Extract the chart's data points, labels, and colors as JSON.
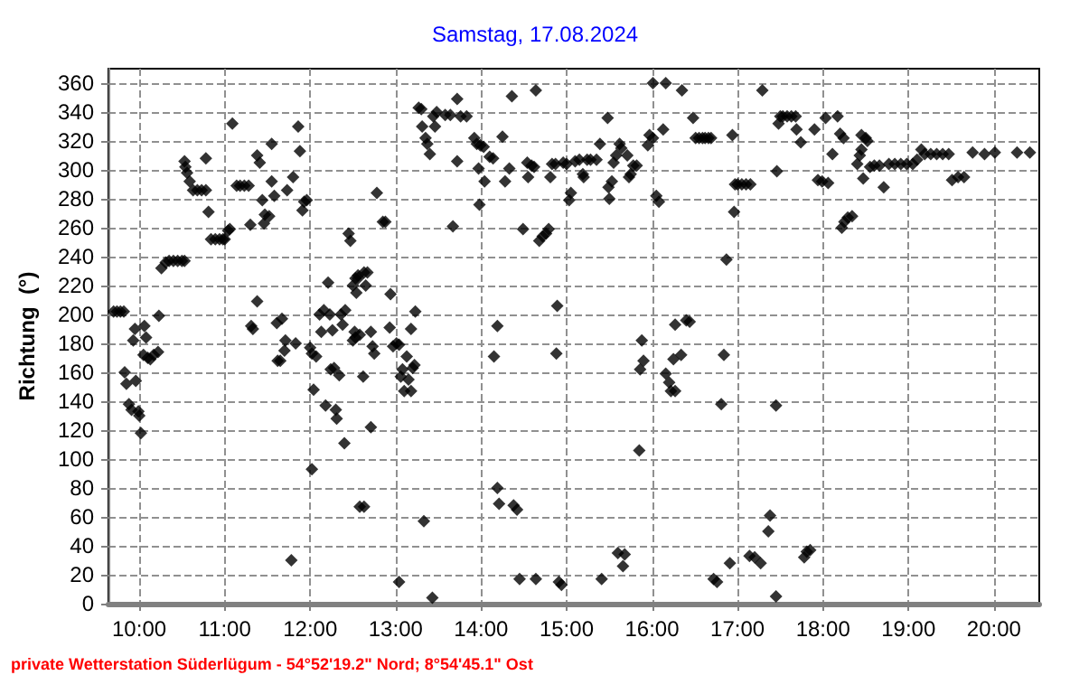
{
  "chart_data": {
    "type": "scatter",
    "title": "Samstag, 17.08.2024",
    "ylabel": "Richtung  (°)",
    "annotations": [
      "private Wetterstation Süderlügum - 54°52'19.2\" Nord; 8°54'45.1\" Ost"
    ],
    "x": [
      9.7,
      9.74,
      9.78,
      9.82,
      9.83,
      9.85,
      9.88,
      9.91,
      9.93,
      9.95,
      9.96,
      9.99,
      10.0,
      10.02,
      10.06,
      10.08,
      10.05,
      10.1,
      10.13,
      10.17,
      10.22,
      10.23,
      10.26,
      10.31,
      10.35,
      10.4,
      10.45,
      10.5,
      10.53,
      10.53,
      10.54,
      10.56,
      10.59,
      10.63,
      10.68,
      10.73,
      10.78,
      10.78,
      10.81,
      10.84,
      10.89,
      10.94,
      10.98,
      11.0,
      11.04,
      11.06,
      11.09,
      11.14,
      11.18,
      11.23,
      11.28,
      11.3,
      11.38,
      11.41,
      11.38,
      11.33,
      11.31,
      11.44,
      11.46,
      11.47,
      11.52,
      11.55,
      11.55,
      11.58,
      11.61,
      11.62,
      11.65,
      11.67,
      11.7,
      11.71,
      11.73,
      11.78,
      11.8,
      11.83,
      11.86,
      11.88,
      11.91,
      11.93,
      11.96,
      12.0,
      12.02,
      12.04,
      12.02,
      12.07,
      12.11,
      12.13,
      12.16,
      12.21,
      12.23,
      12.18,
      12.26,
      12.24,
      12.28,
      12.3,
      12.31,
      12.34,
      12.36,
      12.4,
      12.38,
      12.41,
      12.45,
      12.47,
      12.5,
      12.53,
      12.56,
      12.53,
      12.58,
      12.58,
      12.54,
      12.56,
      12.63,
      12.67,
      12.65,
      12.52,
      12.5,
      12.71,
      12.73,
      12.75,
      12.62,
      12.71,
      12.78,
      12.85,
      12.88,
      12.94,
      12.93,
      12.97,
      13.01,
      13.04,
      13.06,
      13.08,
      13.1,
      13.13,
      13.15,
      13.18,
      13.18,
      13.2,
      13.22,
      13.23,
      12.63,
      13.04,
      13.33,
      13.43,
      13.27,
      13.3,
      13.31,
      13.35,
      13.37,
      13.4,
      13.44,
      13.48,
      13.46,
      13.58,
      13.64,
      13.72,
      13.76,
      13.83,
      13.72,
      13.67,
      13.92,
      13.95,
      13.97,
      13.99,
      14.03,
      14.04,
      14.1,
      14.14,
      13.98,
      14.19,
      14.15,
      14.19,
      14.21,
      14.38,
      14.42,
      14.36,
      14.25,
      14.28,
      14.33,
      14.45,
      14.64,
      14.49,
      14.64,
      14.54,
      14.59,
      14.62,
      14.55,
      14.68,
      14.72,
      14.76,
      14.79,
      14.81,
      14.83,
      14.87,
      14.89,
      14.88,
      14.91,
      14.94,
      14.96,
      15.0,
      15.03,
      15.05,
      15.1,
      15.15,
      15.19,
      15.2,
      15.24,
      15.28,
      15.35,
      15.39,
      15.41,
      15.48,
      15.49,
      15.5,
      15.53,
      15.55,
      15.58,
      15.62,
      15.64,
      15.6,
      15.68,
      15.66,
      15.71,
      15.73,
      15.75,
      15.78,
      15.82,
      15.85,
      15.88,
      15.86,
      15.9,
      15.95,
      15.97,
      16.01,
      16.01,
      16.16,
      16.05,
      16.08,
      16.13,
      16.16,
      16.2,
      16.22,
      16.27,
      16.25,
      16.27,
      16.34,
      16.4,
      16.35,
      16.48,
      16.51,
      16.55,
      16.59,
      16.62,
      16.66,
      16.69,
      16.94,
      16.97,
      17.0,
      17.05,
      17.1,
      17.15,
      16.96,
      16.87,
      16.44,
      16.84,
      16.81,
      17.45,
      17.29,
      16.72,
      16.76,
      16.91,
      17.14,
      17.2,
      17.27,
      17.38,
      17.36,
      17.45,
      17.46,
      17.48,
      17.5,
      17.53,
      17.58,
      17.63,
      17.68,
      17.69,
      17.74,
      17.9,
      17.81,
      17.85,
      17.78,
      17.94,
      17.99,
      18.06,
      18.03,
      18.11,
      18.17,
      18.2,
      18.24,
      18.45,
      18.5,
      18.52,
      18.45,
      18.43,
      18.4,
      18.47,
      18.22,
      18.25,
      18.29,
      18.34,
      18.55,
      18.6,
      18.66,
      18.71,
      18.77,
      18.84,
      18.91,
      18.98,
      19.05,
      19.1,
      19.15,
      19.19,
      19.26,
      19.33,
      19.4,
      19.47,
      19.51,
      19.58,
      19.65,
      19.75,
      19.89,
      20.01,
      20.27,
      20.42
    ],
    "values": [
      202,
      202,
      202,
      202,
      160,
      152,
      138,
      134,
      182,
      190,
      154,
      133,
      130,
      118,
      192,
      184,
      172,
      170,
      169,
      172,
      174,
      199,
      232,
      236,
      237,
      237,
      237,
      237,
      237,
      306,
      302,
      298,
      292,
      286,
      286,
      286,
      286,
      308,
      271,
      252,
      252,
      252,
      252,
      252,
      258,
      259,
      332,
      289,
      289,
      289,
      289,
      262,
      310,
      305,
      209,
      190,
      192,
      279,
      263,
      269,
      268,
      292,
      318,
      282,
      194,
      168,
      168,
      197,
      175,
      182,
      286,
      30,
      295,
      180,
      330,
      313,
      272,
      278,
      279,
      177,
      173,
      148,
      93,
      171,
      200,
      188,
      203,
      222,
      200,
      137,
      189,
      162,
      163,
      134,
      128,
      158,
      200,
      111,
      193,
      203,
      256,
      251,
      220,
      225,
      227,
      184,
      186,
      67,
      215,
      225,
      229,
      229,
      220,
      188,
      182,
      188,
      178,
      173,
      157,
      122,
      284,
      264,
      264,
      214,
      191,
      178,
      180,
      179,
      157,
      162,
      147,
      171,
      155,
      190,
      147,
      163,
      165,
      202,
      67,
      15,
      57,
      4,
      343,
      342,
      330,
      322,
      318,
      311,
      337,
      340,
      330,
      338,
      338,
      349,
      337,
      337,
      306,
      261,
      322,
      318,
      301,
      317,
      316,
      292,
      309,
      308,
      276,
      192,
      171,
      80,
      69,
      68,
      65,
      351,
      323,
      292,
      301,
      17,
      17,
      259,
      355,
      305,
      303,
      302,
      295,
      251,
      254,
      256,
      259,
      295,
      304,
      304,
      206,
      173,
      15,
      13,
      305,
      304,
      279,
      284,
      306,
      307,
      297,
      295,
      307,
      307,
      307,
      318,
      17,
      336,
      288,
      280,
      292,
      305,
      310,
      318,
      315,
      35,
      34,
      26,
      310,
      295,
      297,
      303,
      303,
      106,
      182,
      162,
      168,
      317,
      324,
      322,
      360,
      360,
      282,
      278,
      328,
      159,
      153,
      147,
      147,
      169,
      193,
      172,
      196,
      355,
      336,
      322,
      322,
      322,
      322,
      322,
      322,
      324,
      290,
      290,
      290,
      290,
      290,
      271,
      238,
      195,
      172,
      138,
      137,
      355,
      17,
      15,
      28,
      33,
      32,
      28,
      61,
      50,
      5,
      299,
      332,
      337,
      337,
      337,
      337,
      337,
      328,
      319,
      328,
      36,
      37,
      32,
      293,
      292,
      291,
      336,
      311,
      337,
      325,
      322,
      324,
      322,
      320,
      314,
      310,
      304,
      294,
      260,
      264,
      267,
      268,
      302,
      303,
      303,
      288,
      304,
      304,
      304,
      304,
      304,
      307,
      314,
      311,
      311,
      311,
      311,
      311,
      293,
      295,
      295,
      312,
      311,
      312,
      312,
      312
    ],
    "color": "#000000",
    "marker": "diamond",
    "grid": true,
    "xlim": [
      9.64,
      20.53
    ],
    "xticks": [
      {
        "value": 10,
        "label": "10:00"
      },
      {
        "value": 11,
        "label": "11:00"
      },
      {
        "value": 12,
        "label": "12:00"
      },
      {
        "value": 13,
        "label": "13:00"
      },
      {
        "value": 14,
        "label": "14:00"
      },
      {
        "value": 15,
        "label": "15:00"
      },
      {
        "value": 16,
        "label": "16:00"
      },
      {
        "value": 17,
        "label": "17:00"
      },
      {
        "value": 18,
        "label": "18:00"
      },
      {
        "value": 19,
        "label": "19:00"
      },
      {
        "value": 20,
        "label": "20:00"
      }
    ],
    "ylim": [
      0,
      370
    ],
    "yticks": [
      0,
      20,
      40,
      60,
      80,
      100,
      120,
      140,
      160,
      180,
      200,
      220,
      240,
      260,
      280,
      300,
      320,
      340,
      360
    ]
  }
}
